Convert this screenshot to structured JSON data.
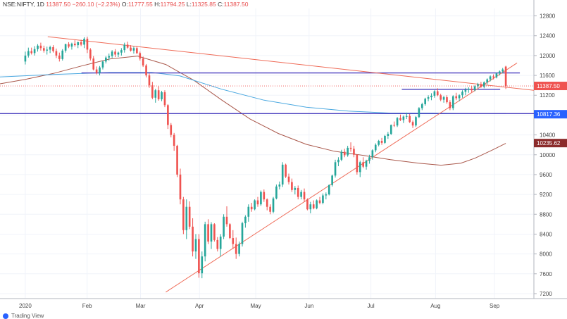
{
  "header": {
    "symbol": "NSE:NIFTY, 1D",
    "value": "11387.50",
    "change": "−260.10 (−2.23%)",
    "o_label": "O:",
    "o": "11777.55",
    "h_label": "H:",
    "h": "11794.25",
    "l_label": "L:",
    "l": "11325.85",
    "c_label": "C:",
    "c": "11387.50"
  },
  "footer": {
    "text": "Trading View"
  },
  "colors": {
    "up": "#26a69a",
    "down": "#ef5350",
    "grid": "#f0f3fa",
    "hline": "#4a3fbf",
    "trend": "#ef6b57",
    "ma_slow": "#a9574a",
    "ma_blue": "#4aa8e0",
    "price_line": "#ef5350"
  },
  "chart_data": {
    "type": "candlestick",
    "symbol": "NSE:NIFTY",
    "interval": "1D",
    "ylim": [
      7100,
      12950
    ],
    "y_ticks": [
      7200,
      7600,
      8000,
      8400,
      8800,
      9200,
      9600,
      10000,
      10400,
      10800,
      11200,
      11600,
      12000,
      12400,
      12800
    ],
    "x_ticks": [
      {
        "label": "2020",
        "day": 0
      },
      {
        "label": "Feb",
        "day": 22
      },
      {
        "label": "Mar",
        "day": 41
      },
      {
        "label": "Apr",
        "day": 62
      },
      {
        "label": "May",
        "day": 82
      },
      {
        "label": "Jun",
        "day": 101
      },
      {
        "label": "Jul",
        "day": 123
      },
      {
        "label": "Aug",
        "day": 146
      },
      {
        "label": "Sep",
        "day": 167
      }
    ],
    "x_range": [
      -9,
      181
    ],
    "price_labels": [
      {
        "value": 11387.5,
        "text": "11387.50",
        "color": "#ef5350"
      },
      {
        "value": 10817.36,
        "text": "10817.36",
        "color": "#2962ff"
      },
      {
        "value": 10235.62,
        "text": "10235.62",
        "color": "#8b2b2b"
      }
    ],
    "horizontal_lines": [
      {
        "value": 11650,
        "from_day": 20,
        "to_day": 176
      },
      {
        "value": 10830,
        "from_day": -9,
        "to_day": 181
      },
      {
        "value": 11320,
        "from_day": 134,
        "to_day": 169
      }
    ],
    "trend_lines": [
      {
        "d1": 8,
        "v1": 12380,
        "d2": 181,
        "v2": 11300
      },
      {
        "d1": 50,
        "v1": 7230,
        "d2": 175,
        "v2": 11850
      }
    ],
    "ma_slow": [
      [
        -9,
        11430
      ],
      [
        0,
        11520
      ],
      [
        10,
        11640
      ],
      [
        20,
        11790
      ],
      [
        30,
        11930
      ],
      [
        40,
        11990
      ],
      [
        50,
        11820
      ],
      [
        60,
        11500
      ],
      [
        70,
        11100
      ],
      [
        80,
        10720
      ],
      [
        90,
        10430
      ],
      [
        100,
        10210
      ],
      [
        110,
        10070
      ],
      [
        120,
        9990
      ],
      [
        130,
        9900
      ],
      [
        140,
        9830
      ],
      [
        148,
        9790
      ],
      [
        155,
        9830
      ],
      [
        160,
        9930
      ],
      [
        166,
        10090
      ],
      [
        171,
        10230
      ]
    ],
    "ma_blue": [
      [
        -9,
        11570
      ],
      [
        10,
        11620
      ],
      [
        30,
        11660
      ],
      [
        45,
        11660
      ],
      [
        55,
        11590
      ],
      [
        70,
        11320
      ],
      [
        85,
        11100
      ],
      [
        100,
        10960
      ],
      [
        115,
        10880
      ],
      [
        130,
        10840
      ],
      [
        145,
        10840
      ],
      [
        160,
        10830
      ],
      [
        171,
        10830
      ]
    ],
    "candles": [
      [
        11880,
        12080,
        11820,
        12000
      ],
      [
        12000,
        12160,
        11960,
        12090
      ],
      [
        12090,
        12160,
        12020,
        12050
      ],
      [
        12050,
        12190,
        12000,
        12130
      ],
      [
        12130,
        12230,
        12080,
        12200
      ],
      [
        12200,
        12260,
        12100,
        12150
      ],
      [
        12150,
        12200,
        12060,
        12100
      ],
      [
        12100,
        12180,
        12020,
        12120
      ],
      [
        12120,
        12200,
        12050,
        12170
      ],
      [
        12170,
        12210,
        12060,
        12090
      ],
      [
        12090,
        12140,
        11950,
        12000
      ],
      [
        12000,
        12060,
        11880,
        11930
      ],
      [
        11930,
        12130,
        11900,
        12100
      ],
      [
        12100,
        12240,
        12060,
        12230
      ],
      [
        12230,
        12270,
        12150,
        12180
      ],
      [
        12180,
        12260,
        12120,
        12240
      ],
      [
        12240,
        12310,
        12180,
        12210
      ],
      [
        12210,
        12280,
        12150,
        12270
      ],
      [
        12270,
        12320,
        12190,
        12220
      ],
      [
        12220,
        12370,
        12150,
        12340
      ],
      [
        12340,
        12380,
        12050,
        12120
      ],
      [
        12120,
        12150,
        11900,
        11940
      ],
      [
        11940,
        11990,
        11700,
        11720
      ],
      [
        11720,
        11780,
        11620,
        11650
      ],
      [
        11650,
        11790,
        11600,
        11760
      ],
      [
        11760,
        11900,
        11720,
        11880
      ],
      [
        11880,
        11990,
        11840,
        11960
      ],
      [
        11960,
        12040,
        11900,
        11990
      ],
      [
        11990,
        12110,
        11950,
        12080
      ],
      [
        12080,
        12130,
        11970,
        12020
      ],
      [
        12020,
        12080,
        11970,
        12060
      ],
      [
        12060,
        12150,
        12000,
        12110
      ],
      [
        12110,
        12260,
        12060,
        12220
      ],
      [
        12220,
        12280,
        12140,
        12160
      ],
      [
        12160,
        12210,
        12080,
        12100
      ],
      [
        12100,
        12180,
        12040,
        12150
      ],
      [
        12150,
        12190,
        12030,
        12050
      ],
      [
        12050,
        12080,
        11900,
        11940
      ],
      [
        11940,
        11980,
        11770,
        11800
      ],
      [
        11800,
        11830,
        11560,
        11600
      ],
      [
        11600,
        11640,
        11350,
        11400
      ],
      [
        11400,
        11470,
        11120,
        11150
      ],
      [
        11150,
        11330,
        11050,
        11300
      ],
      [
        11300,
        11380,
        11090,
        11120
      ],
      [
        11120,
        11290,
        11080,
        11260
      ],
      [
        11260,
        11300,
        10960,
        11000
      ],
      [
        11000,
        11020,
        10520,
        10600
      ],
      [
        10600,
        10640,
        10350,
        10400
      ],
      [
        10400,
        10440,
        10080,
        10180
      ],
      [
        10180,
        10200,
        9550,
        9600
      ],
      [
        9600,
        9720,
        9000,
        9100
      ],
      [
        9100,
        9150,
        8400,
        8480
      ],
      [
        8480,
        9100,
        8300,
        8950
      ],
      [
        8950,
        9060,
        8500,
        8550
      ],
      [
        8550,
        8720,
        7950,
        8050
      ],
      [
        8050,
        8400,
        7900,
        8300
      ],
      [
        8300,
        8400,
        7520,
        7610
      ],
      [
        7610,
        8050,
        7510,
        7950
      ],
      [
        7950,
        8650,
        7850,
        8600
      ],
      [
        8600,
        8700,
        8200,
        8250
      ],
      [
        8250,
        8640,
        8100,
        8600
      ],
      [
        8600,
        8620,
        8250,
        8280
      ],
      [
        8280,
        8340,
        8050,
        8100
      ],
      [
        8100,
        8400,
        7950,
        8350
      ],
      [
        8350,
        8800,
        8300,
        8750
      ],
      [
        8750,
        8960,
        8550,
        8600
      ],
      [
        8600,
        8620,
        8300,
        8320
      ],
      [
        8320,
        8480,
        8100,
        8200
      ],
      [
        8200,
        8330,
        7900,
        8000
      ],
      [
        8000,
        8250,
        7950,
        8200
      ],
      [
        8200,
        8650,
        8150,
        8620
      ],
      [
        8620,
        8780,
        8530,
        8750
      ],
      [
        8750,
        9000,
        8650,
        8950
      ],
      [
        8950,
        9030,
        8850,
        8900
      ],
      [
        8900,
        9100,
        8880,
        9080
      ],
      [
        9080,
        9150,
        8950,
        9000
      ],
      [
        9000,
        9280,
        8970,
        9250
      ],
      [
        9250,
        9300,
        9050,
        9100
      ],
      [
        9100,
        9120,
        8880,
        8950
      ],
      [
        8950,
        9000,
        8800,
        8850
      ],
      [
        8850,
        9150,
        8820,
        9120
      ],
      [
        9120,
        9400,
        9100,
        9360
      ],
      [
        9360,
        9460,
        9300,
        9400
      ],
      [
        9400,
        9850,
        9350,
        9800
      ],
      [
        9800,
        9820,
        9530,
        9560
      ],
      [
        9560,
        9620,
        9400,
        9450
      ],
      [
        9450,
        9520,
        9250,
        9290
      ],
      [
        9290,
        9370,
        9200,
        9330
      ],
      [
        9330,
        9380,
        9100,
        9150
      ],
      [
        9150,
        9290,
        9100,
        9250
      ],
      [
        9250,
        9320,
        9050,
        9100
      ],
      [
        9100,
        9120,
        8880,
        8900
      ],
      [
        8900,
        9050,
        8820,
        9000
      ],
      [
        9000,
        9080,
        8900,
        8920
      ],
      [
        8920,
        9100,
        8900,
        9080
      ],
      [
        9080,
        9150,
        9000,
        9030
      ],
      [
        9030,
        9220,
        9000,
        9180
      ],
      [
        9180,
        9240,
        9100,
        9200
      ],
      [
        9200,
        9400,
        9180,
        9390
      ],
      [
        9390,
        9600,
        9360,
        9580
      ],
      [
        9580,
        9900,
        9540,
        9850
      ],
      [
        9850,
        9950,
        9770,
        9900
      ],
      [
        9900,
        10100,
        9870,
        10060
      ],
      [
        10060,
        10120,
        9950,
        9990
      ],
      [
        9990,
        10180,
        9960,
        10140
      ],
      [
        10140,
        10250,
        10060,
        10120
      ],
      [
        10120,
        10180,
        9950,
        10000
      ],
      [
        10000,
        10010,
        9600,
        9650
      ],
      [
        9650,
        9880,
        9550,
        9850
      ],
      [
        9850,
        9950,
        9730,
        9760
      ],
      [
        9760,
        9900,
        9700,
        9880
      ],
      [
        9880,
        10000,
        9820,
        9950
      ],
      [
        9950,
        10110,
        9900,
        10090
      ],
      [
        10090,
        10230,
        10050,
        10200
      ],
      [
        10200,
        10300,
        10170,
        10280
      ],
      [
        10280,
        10340,
        10200,
        10240
      ],
      [
        10240,
        10400,
        10220,
        10380
      ],
      [
        10380,
        10460,
        10320,
        10420
      ],
      [
        10420,
        10610,
        10400,
        10600
      ],
      [
        10600,
        10670,
        10560,
        10590
      ],
      [
        10590,
        10760,
        10560,
        10740
      ],
      [
        10740,
        10810,
        10680,
        10700
      ],
      [
        10700,
        10790,
        10640,
        10770
      ],
      [
        10770,
        10850,
        10720,
        10780
      ],
      [
        10780,
        10820,
        10640,
        10660
      ],
      [
        10660,
        10690,
        10540,
        10590
      ],
      [
        10590,
        10780,
        10560,
        10760
      ],
      [
        10760,
        10960,
        10740,
        10940
      ],
      [
        10940,
        11050,
        10900,
        11020
      ],
      [
        11020,
        11150,
        10990,
        11130
      ],
      [
        11130,
        11200,
        11080,
        11160
      ],
      [
        11160,
        11240,
        11100,
        11190
      ],
      [
        11190,
        11300,
        11150,
        11280
      ],
      [
        11280,
        11340,
        11180,
        11200
      ],
      [
        11200,
        11230,
        11080,
        11110
      ],
      [
        11110,
        11190,
        11050,
        11160
      ],
      [
        11160,
        11200,
        11030,
        11060
      ],
      [
        11060,
        11100,
        10900,
        10940
      ],
      [
        10940,
        11200,
        10900,
        11180
      ],
      [
        11180,
        11250,
        11100,
        11140
      ],
      [
        11140,
        11220,
        11080,
        11200
      ],
      [
        11200,
        11300,
        11150,
        11270
      ],
      [
        11270,
        11350,
        11200,
        11310
      ],
      [
        11310,
        11360,
        11250,
        11330
      ],
      [
        11330,
        11380,
        11260,
        11300
      ],
      [
        11300,
        11400,
        11280,
        11380
      ],
      [
        11380,
        11450,
        11340,
        11420
      ],
      [
        11420,
        11470,
        11350,
        11370
      ],
      [
        11370,
        11480,
        11340,
        11460
      ],
      [
        11460,
        11540,
        11420,
        11520
      ],
      [
        11520,
        11600,
        11480,
        11580
      ],
      [
        11580,
        11620,
        11520,
        11560
      ],
      [
        11560,
        11660,
        11540,
        11640
      ],
      [
        11640,
        11700,
        11600,
        11680
      ],
      [
        11680,
        11750,
        11640,
        11720
      ],
      [
        11777.55,
        11794.25,
        11325.85,
        11387.5
      ]
    ]
  }
}
